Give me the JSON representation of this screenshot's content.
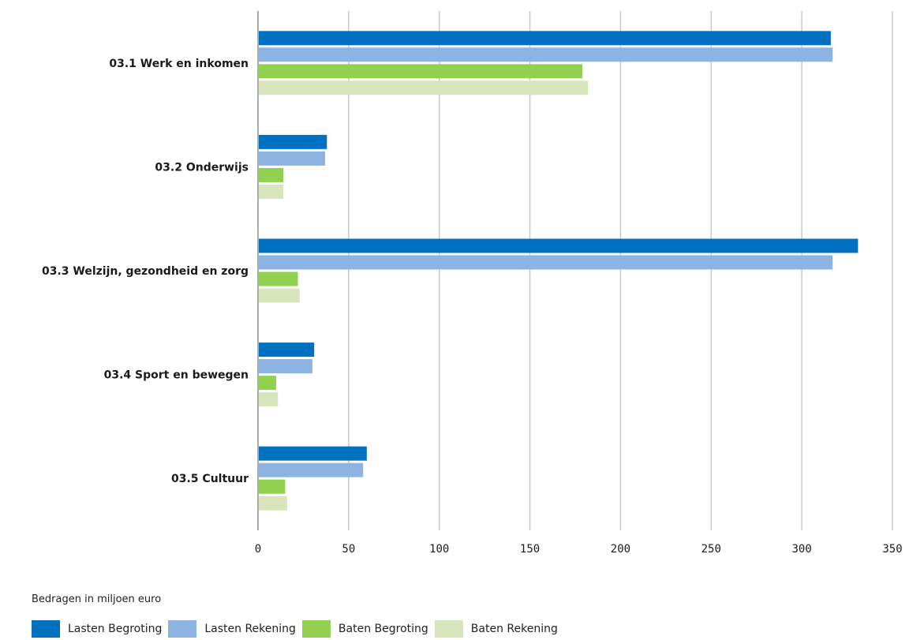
{
  "chart_data": {
    "type": "bar",
    "orientation": "horizontal",
    "categories": [
      "03.1 Werk en inkomen",
      "03.2 Onderwijs",
      "03.3 Welzijn, gezondheid en zorg",
      "03.4 Sport en bewegen",
      "03.5 Cultuur"
    ],
    "series": [
      {
        "name": "Lasten Begroting",
        "color": "#0070C0",
        "values": [
          316,
          38,
          331,
          31,
          60
        ]
      },
      {
        "name": "Lasten Rekening",
        "color": "#8DB3E2",
        "values": [
          317,
          37,
          317,
          30,
          58
        ]
      },
      {
        "name": "Baten Begroting",
        "color": "#92D050",
        "values": [
          179,
          14,
          22,
          10,
          15
        ]
      },
      {
        "name": "Baten Rekening",
        "color": "#D7E4BC",
        "values": [
          182,
          14,
          23,
          11,
          16
        ]
      }
    ],
    "xlim": [
      0,
      350
    ],
    "xticks": [
      0,
      50,
      100,
      150,
      200,
      250,
      300,
      350
    ],
    "grid": true,
    "legend_position": "bottom-left",
    "note": "Bedragen in miljoen euro"
  }
}
